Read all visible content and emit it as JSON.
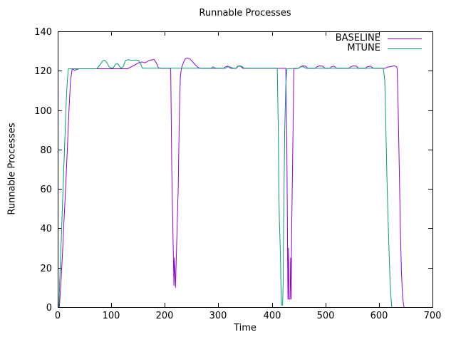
{
  "window": {
    "background": "#ffffff"
  },
  "colors": {
    "border": "#000000",
    "text": "#000000",
    "baseline_line": "#9400d3",
    "mtune_line": "#009e73"
  },
  "chart_data": {
    "type": "line",
    "title": "Runnable Processes",
    "xlabel": "Time",
    "ylabel": "Runnable Processes",
    "xlim": [
      0,
      700
    ],
    "ylim": [
      0,
      140
    ],
    "xticks": [
      0,
      100,
      200,
      300,
      400,
      500,
      600,
      700
    ],
    "yticks": [
      0,
      20,
      40,
      60,
      80,
      100,
      120,
      140
    ],
    "grid": false,
    "legend_position": "top-right-inside",
    "series": [
      {
        "name": "BASELINE",
        "color": "#9400d3",
        "points": [
          [
            3,
            0
          ],
          [
            6,
            12
          ],
          [
            9,
            28
          ],
          [
            12,
            45
          ],
          [
            15,
            62
          ],
          [
            18,
            80
          ],
          [
            21,
            100
          ],
          [
            24,
            115
          ],
          [
            27,
            121
          ],
          [
            32,
            120.3
          ],
          [
            40,
            121
          ],
          [
            130,
            121
          ],
          [
            141,
            122.5
          ],
          [
            151,
            124
          ],
          [
            157,
            124.5
          ],
          [
            163,
            124
          ],
          [
            169,
            125
          ],
          [
            175,
            125.5
          ],
          [
            180,
            125.7
          ],
          [
            184,
            124
          ],
          [
            188,
            121.5
          ],
          [
            193,
            121.2
          ],
          [
            209,
            121.2
          ],
          [
            211,
            121
          ],
          [
            213,
            70
          ],
          [
            215,
            40
          ],
          [
            217,
            11
          ],
          [
            218,
            25
          ],
          [
            220,
            10
          ],
          [
            222,
            30
          ],
          [
            225,
            60
          ],
          [
            227,
            95
          ],
          [
            229,
            117
          ],
          [
            231,
            121
          ],
          [
            234,
            123.5
          ],
          [
            238,
            126
          ],
          [
            242,
            126.4
          ],
          [
            247,
            126
          ],
          [
            252,
            124.5
          ],
          [
            257,
            123
          ],
          [
            262,
            121.7
          ],
          [
            267,
            121.2
          ],
          [
            310,
            121.2
          ],
          [
            313,
            122
          ],
          [
            318,
            122.3
          ],
          [
            323,
            121.2
          ],
          [
            333,
            121.2
          ],
          [
            336,
            122.3
          ],
          [
            341,
            122.5
          ],
          [
            346,
            121.2
          ],
          [
            426,
            121.2
          ],
          [
            428,
            80
          ],
          [
            429,
            40
          ],
          [
            430,
            4
          ],
          [
            431,
            30
          ],
          [
            432,
            4
          ],
          [
            434,
            4
          ],
          [
            435,
            25
          ],
          [
            436,
            4
          ],
          [
            437,
            40
          ],
          [
            439,
            80
          ],
          [
            441,
            121
          ],
          [
            450,
            121.2
          ],
          [
            453,
            122
          ],
          [
            458,
            122.5
          ],
          [
            463,
            122.3
          ],
          [
            467,
            121.2
          ],
          [
            481,
            121.2
          ],
          [
            484,
            122
          ],
          [
            489,
            122.5
          ],
          [
            495,
            122.3
          ],
          [
            499,
            121.2
          ],
          [
            508,
            121.2
          ],
          [
            511,
            122
          ],
          [
            516,
            122.3
          ],
          [
            521,
            121.2
          ],
          [
            544,
            121.2
          ],
          [
            547,
            122
          ],
          [
            552,
            122.5
          ],
          [
            558,
            122.3
          ],
          [
            562,
            121.2
          ],
          [
            574,
            121.2
          ],
          [
            578,
            122
          ],
          [
            584,
            122.3
          ],
          [
            590,
            121.2
          ],
          [
            610,
            121.2
          ],
          [
            616,
            121.8
          ],
          [
            623,
            122.2
          ],
          [
            629,
            122.5
          ],
          [
            633,
            122
          ],
          [
            634,
            121
          ],
          [
            636,
            100
          ],
          [
            638,
            70
          ],
          [
            640,
            40
          ],
          [
            642,
            18
          ],
          [
            644,
            6
          ],
          [
            646,
            1
          ],
          [
            647,
            0
          ]
        ]
      },
      {
        "name": "MTUNE",
        "color": "#009e73",
        "points": [
          [
            2,
            0
          ],
          [
            4,
            15
          ],
          [
            6,
            30
          ],
          [
            8,
            45
          ],
          [
            10,
            60
          ],
          [
            12,
            75
          ],
          [
            14,
            90
          ],
          [
            16,
            105
          ],
          [
            18,
            115
          ],
          [
            20,
            121
          ],
          [
            73,
            121
          ],
          [
            79,
            123
          ],
          [
            84,
            125
          ],
          [
            88,
            125.3
          ],
          [
            92,
            124
          ],
          [
            96,
            122
          ],
          [
            100,
            121.3
          ],
          [
            104,
            121.5
          ],
          [
            108,
            123.3
          ],
          [
            112,
            123.6
          ],
          [
            115,
            122.5
          ],
          [
            118,
            121.3
          ],
          [
            122,
            122
          ],
          [
            127,
            125.3
          ],
          [
            133,
            125.6
          ],
          [
            139,
            125.2
          ],
          [
            145,
            125.5
          ],
          [
            151,
            125.3
          ],
          [
            155,
            123.5
          ],
          [
            158,
            121.3
          ],
          [
            287,
            121.3
          ],
          [
            290,
            122
          ],
          [
            295,
            121.3
          ],
          [
            314,
            121.3
          ],
          [
            317,
            122
          ],
          [
            322,
            122
          ],
          [
            327,
            121.3
          ],
          [
            334,
            121.3
          ],
          [
            337,
            122.3
          ],
          [
            343,
            122.3
          ],
          [
            348,
            121.3
          ],
          [
            410,
            121.3
          ],
          [
            412,
            90
          ],
          [
            413,
            60
          ],
          [
            414,
            44
          ],
          [
            416,
            27
          ],
          [
            417,
            10
          ],
          [
            418,
            1
          ],
          [
            420,
            1
          ],
          [
            421,
            12
          ],
          [
            422,
            44
          ],
          [
            424,
            90
          ],
          [
            426,
            112
          ],
          [
            428,
            121
          ],
          [
            450,
            121.3
          ],
          [
            454,
            122
          ],
          [
            459,
            122
          ],
          [
            463,
            121.3
          ],
          [
            608,
            121.3
          ],
          [
            611,
            115
          ],
          [
            613,
            90
          ],
          [
            615,
            65
          ],
          [
            617,
            45
          ],
          [
            619,
            28
          ],
          [
            621,
            12
          ],
          [
            623,
            3
          ],
          [
            624,
            0
          ]
        ]
      }
    ]
  }
}
